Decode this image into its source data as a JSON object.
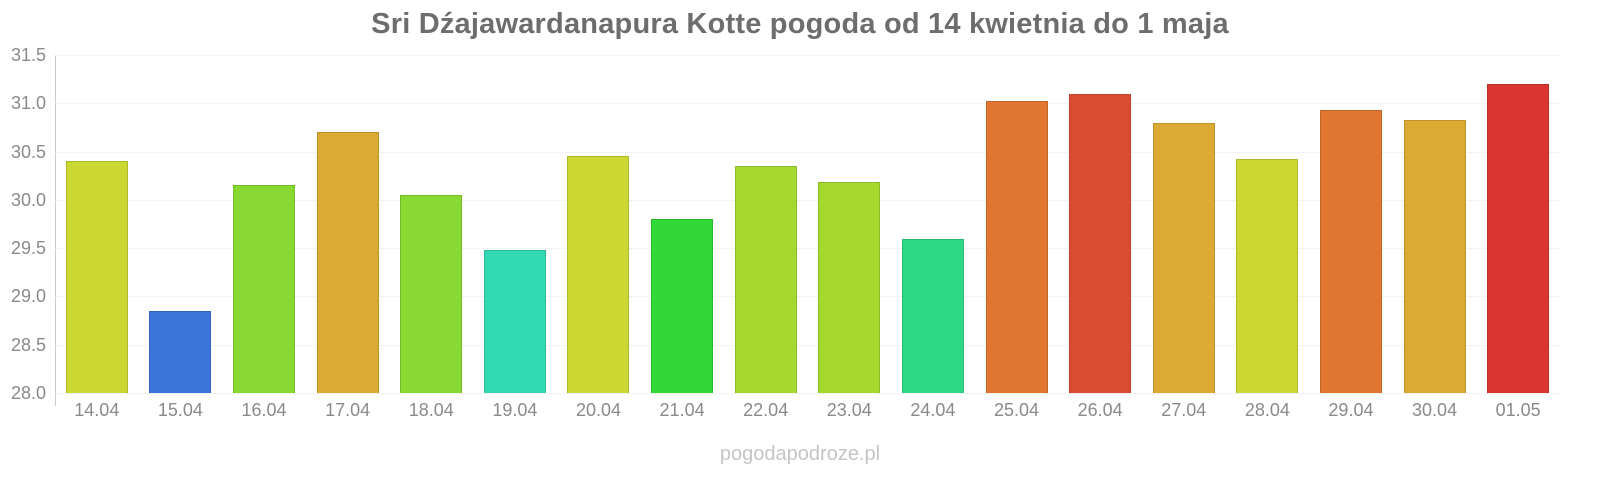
{
  "title": "Sri Dźajawardanapura Kotte pogoda od 14 kwietnia do 1 maja",
  "watermark": "pogodapodroze.pl",
  "chart_data": {
    "type": "bar",
    "title": "Sri Dźajawardanapura Kotte pogoda od 14 kwietnia do 1 maja",
    "categories": [
      "14.04",
      "15.04",
      "16.04",
      "17.04",
      "18.04",
      "19.04",
      "20.04",
      "21.04",
      "22.04",
      "23.04",
      "24.04",
      "25.04",
      "26.04",
      "27.04",
      "28.04",
      "29.04",
      "30.04",
      "01.05"
    ],
    "values": [
      30.4,
      28.85,
      30.15,
      30.7,
      30.05,
      29.48,
      30.45,
      29.8,
      30.35,
      30.18,
      29.6,
      31.02,
      31.1,
      30.8,
      30.42,
      30.93,
      30.83,
      31.2
    ],
    "colors": [
      "#cbd832",
      "#3a76d9",
      "#88d932",
      "#dbaa33",
      "#88d932",
      "#32d9b2",
      "#cbd832",
      "#32d835",
      "#a6d930",
      "#a6d930",
      "#2ed986",
      "#e0762f",
      "#d94c32",
      "#dbaa33",
      "#cbd832",
      "#e0762f",
      "#dbaa33",
      "#d93632"
    ],
    "xlabel": "",
    "ylabel": "",
    "ylim": [
      28.0,
      31.5
    ],
    "yticks": [
      "31.5",
      "31.0",
      "30.5",
      "30.0",
      "29.5",
      "29.0",
      "28.5",
      "28.0"
    ],
    "grid": true,
    "legend": "none",
    "grid_color": "#e5e5e5",
    "axis_color": "#c9c9c9",
    "label_color": "#8a8a8a",
    "title_color": "#6d6d6d",
    "watermark_color": "#c5c5c5"
  }
}
